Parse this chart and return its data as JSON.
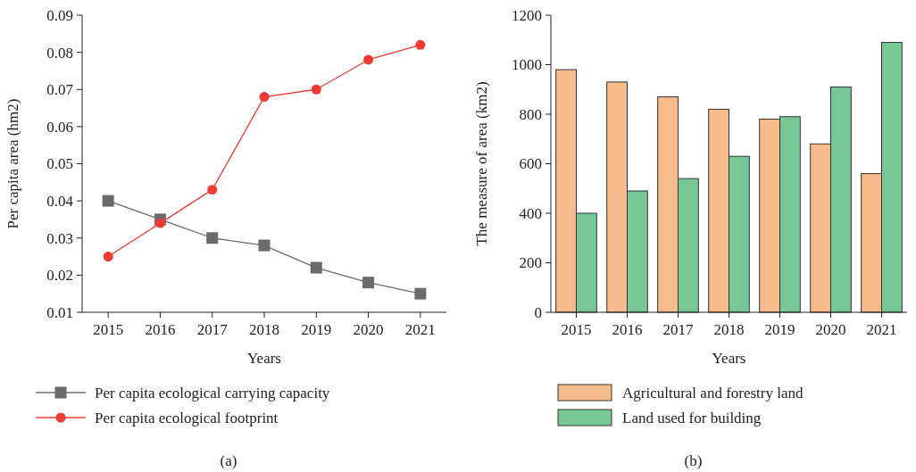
{
  "chart_data": [
    {
      "type": "line",
      "categories": [
        "2015",
        "2016",
        "2017",
        "2018",
        "2019",
        "2020",
        "2021"
      ],
      "xlabel": "Years",
      "ylabel": "Per capita area (hm2)",
      "ylim": [
        0.01,
        0.09
      ],
      "yticks": [
        0.01,
        0.02,
        0.03,
        0.04,
        0.05,
        0.06,
        0.07,
        0.08,
        0.09
      ],
      "legend": "bottom",
      "annotations": [
        "(a)"
      ],
      "series": [
        {
          "name": "Per capita ecological carrying capacity",
          "color": "#6b6b6e",
          "marker": "square",
          "values": [
            0.04,
            0.035,
            0.03,
            0.028,
            0.022,
            0.018,
            0.015
          ]
        },
        {
          "name": "Per capita ecological footprint",
          "color": "#ee3a32",
          "marker": "circle",
          "values": [
            0.025,
            0.034,
            0.043,
            0.068,
            0.07,
            0.078,
            0.082
          ]
        }
      ]
    },
    {
      "type": "bar",
      "categories": [
        "2015",
        "2016",
        "2017",
        "2018",
        "2019",
        "2020",
        "2021"
      ],
      "xlabel": "Years",
      "ylabel": "The measure of area (km2)",
      "ylim": [
        0,
        1200
      ],
      "yticks": [
        0,
        200,
        400,
        600,
        800,
        1000,
        1200
      ],
      "legend": "bottom",
      "annotations": [
        "(b)"
      ],
      "series": [
        {
          "name": "Agricultural and forestry land",
          "color": "#f8bb8c",
          "values": [
            980,
            930,
            870,
            820,
            780,
            680,
            560
          ]
        },
        {
          "name": "Land used for building",
          "color": "#78c897",
          "values": [
            400,
            490,
            540,
            630,
            790,
            910,
            1090
          ]
        }
      ]
    }
  ]
}
